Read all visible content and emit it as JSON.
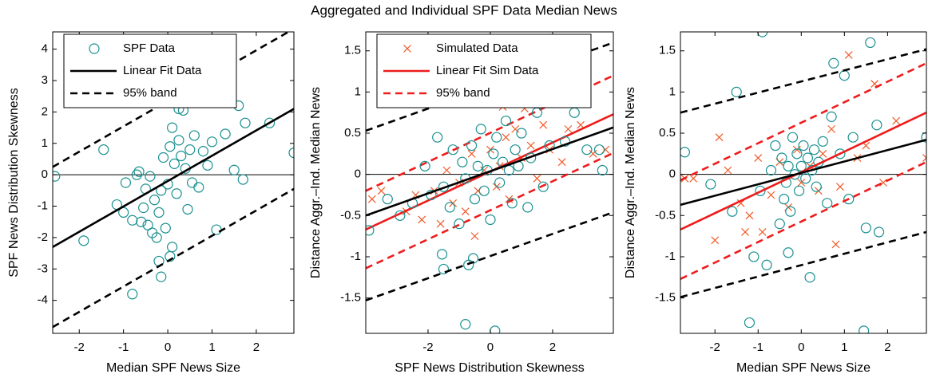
{
  "title": "Aggregated and Individual SPF Data Median News",
  "chart_data": [
    {
      "type": "scatter",
      "xlabel": "Median SPF News Size",
      "ylabel": "SPF News Distribution Skewness",
      "xlim": [
        -2.6,
        2.85
      ],
      "ylim": [
        -5.05,
        4.55
      ],
      "xticks": [
        -2,
        -1,
        0,
        1,
        2
      ],
      "yticks": [
        -4,
        -3,
        -2,
        -1,
        0,
        1,
        2,
        3,
        4
      ],
      "reference_line": 0,
      "legend": "upper left",
      "series": [
        {
          "name": "SPF Data",
          "kind": "scatter",
          "marker": "circle",
          "color": "#1a9090",
          "x": [
            -2.55,
            -1.45,
            -1.15,
            -1.9,
            -0.8,
            -1,
            -0.95,
            -0.8,
            -0.7,
            -0.6,
            -0.55,
            -0.5,
            -0.45,
            -0.4,
            -0.35,
            -0.3,
            -0.25,
            -0.2,
            -0.15,
            -0.1,
            -0.05,
            0,
            0.05,
            0.1,
            0.1,
            0.15,
            0.2,
            0.25,
            0.3,
            0.35,
            0.4,
            0.45,
            0.5,
            0.6,
            0.7,
            0.8,
            0.9,
            1,
            1.1,
            1.3,
            1.5,
            1.6,
            1.75,
            2.3,
            2.85,
            -0.15,
            -0.2,
            0.05,
            0.25,
            0.55,
            -0.65,
            1.7
          ],
          "values": [
            -0.05,
            0.8,
            -0.95,
            -2.1,
            -3.8,
            -1.2,
            -0.25,
            -1.45,
            0,
            -1.5,
            -1.05,
            -0.45,
            -1.6,
            -0.05,
            -1.85,
            -0.8,
            -2,
            -1.2,
            -0.5,
            0.55,
            -1.7,
            -0.3,
            0.9,
            -2.3,
            1.5,
            0.35,
            -0.6,
            1.1,
            0.6,
            2.05,
            0.2,
            -1.1,
            0.8,
            1.25,
            -0.4,
            0.75,
            0.3,
            1.05,
            -1.75,
            1.3,
            0.15,
            2.2,
            1.65,
            1.65,
            0.7,
            -3.25,
            -2.75,
            -2.6,
            2.1,
            -0.25,
            0.1,
            -0.15
          ]
        },
        {
          "name": "Linear Fit Data",
          "kind": "line",
          "color": "#000000",
          "x": [
            -2.6,
            2.85
          ],
          "values": [
            -2.3,
            2.1
          ]
        },
        {
          "name": "95% band",
          "kind": "band",
          "color": "#000000",
          "x": [
            -2.6,
            2.85
          ],
          "upper": [
            0.25,
            4.65
          ],
          "lower": [
            -4.85,
            -0.45
          ]
        }
      ]
    },
    {
      "type": "scatter",
      "xlabel": "SPF News Distribution Skewness",
      "ylabel": "Distance Aggr.–Ind. Median News",
      "xlim": [
        -4,
        3.95
      ],
      "ylim": [
        -1.93,
        1.73
      ],
      "xticks": [
        -2,
        0,
        2
      ],
      "yticks": [
        -1.5,
        -1,
        -0.5,
        0,
        0.5,
        1,
        1.5
      ],
      "reference_line": 0,
      "legend": "upper left",
      "series": [
        {
          "name": "Simulated Data",
          "kind": "scatter",
          "marker": "cross",
          "color": "#f05a28",
          "x": [
            -3.8,
            -3.5,
            -2.7,
            -2.4,
            -2.2,
            -1.8,
            -1.6,
            -1.4,
            -1.2,
            -1,
            -0.8,
            -0.6,
            -0.4,
            -0.2,
            0,
            0.2,
            0.3,
            0.5,
            0.6,
            0.8,
            1,
            1.1,
            1.3,
            1.5,
            1.7,
            1.9,
            2.1,
            2.3,
            2.5,
            2.9,
            3.3,
            3.7,
            0.4,
            -0.5
          ],
          "values": [
            -0.3,
            -0.2,
            -0.45,
            -0.25,
            -0.55,
            -0.2,
            -0.6,
            0.05,
            -0.35,
            -0.1,
            -0.45,
            0.25,
            -0.2,
            0.05,
            0.3,
            -0.15,
            0.1,
            0.45,
            -0.3,
            0.55,
            0.2,
            0.8,
            0.35,
            -0.05,
            0.6,
            0.3,
            0.95,
            0.15,
            0.55,
            0.6,
            0.25,
            0.3,
            0.82,
            -0.75
          ]
        },
        {
          "name": "Linear Fit Sim Data",
          "kind": "line",
          "color": "#ee1c1c",
          "x": [
            -4,
            3.95
          ],
          "values": [
            -0.67,
            0.73
          ]
        },
        {
          "name": "95% band",
          "kind": "band",
          "color": "#ee1c1c",
          "x": [
            -4,
            3.95
          ],
          "upper": [
            -0.2,
            1.2
          ],
          "lower": [
            -1.14,
            0.26
          ]
        },
        {
          "kind": "scatter",
          "marker": "circle",
          "color": "#1a9090",
          "x": [
            -3.9,
            -3.3,
            -2.9,
            -2.5,
            -2.1,
            -1.9,
            -1.7,
            -1.5,
            -1.3,
            -1.2,
            -1,
            -0.9,
            -0.8,
            -0.7,
            -0.6,
            -0.5,
            -0.4,
            -0.3,
            -0.2,
            -0.1,
            0,
            0.1,
            0.2,
            0.3,
            0.4,
            0.5,
            0.6,
            0.7,
            0.8,
            0.9,
            1,
            1.2,
            1.3,
            1.5,
            1.7,
            1.9,
            2.2,
            2.4,
            2.7,
            3.1,
            3.6,
            -0.8,
            0.15,
            -0.55,
            -1.5,
            -1.55,
            3.5
          ],
          "values": [
            -0.68,
            -0.3,
            -0.5,
            -0.35,
            0.1,
            -0.25,
            0.45,
            -0.15,
            -0.4,
            0.3,
            -0.6,
            0.15,
            -0.05,
            -1.1,
            0.35,
            -0.3,
            0.1,
            0.55,
            -0.2,
            0.05,
            -0.55,
            0.25,
            0.45,
            -0.1,
            0.15,
            0.65,
            0.05,
            -0.35,
            0.3,
            0.1,
            0.5,
            -0.4,
            0.2,
            0.75,
            -0.15,
            0.35,
            1.63,
            0.4,
            0.75,
            0.3,
            0.05,
            -1.82,
            -1.9,
            -1.02,
            -1.15,
            -0.97,
            0.3
          ]
        },
        {
          "kind": "line",
          "color": "#000000",
          "x": [
            -4,
            3.95
          ],
          "values": [
            -0.5,
            0.57
          ]
        },
        {
          "kind": "band",
          "color": "#000000",
          "x": [
            -4,
            3.95
          ],
          "upper": [
            0.53,
            1.6
          ],
          "lower": [
            -1.53,
            -0.46
          ]
        }
      ]
    },
    {
      "type": "scatter",
      "xlabel": "Median SPF News Size",
      "ylabel": "Distance Aggr.–Ind. Median News",
      "xlim": [
        -2.8,
        2.9
      ],
      "ylim": [
        -1.93,
        1.73
      ],
      "xticks": [
        -2,
        -1,
        0,
        1,
        2
      ],
      "yticks": [
        -1.5,
        -1,
        -0.5,
        0,
        0.5,
        1,
        1.5
      ],
      "reference_line": 0,
      "series": [
        {
          "kind": "scatter",
          "marker": "cross",
          "color": "#f05a28",
          "x": [
            -2.7,
            -2.5,
            -2,
            -1.9,
            -1.7,
            -1.4,
            -1.2,
            -1,
            -0.9,
            -0.7,
            -0.5,
            -0.3,
            -0.1,
            0,
            0.2,
            0.4,
            0.5,
            0.7,
            0.9,
            1.1,
            1.3,
            1.5,
            1.7,
            1.9,
            2.2,
            2.9,
            0.8,
            -1.3
          ],
          "values": [
            -0.05,
            -0.05,
            -0.8,
            0.45,
            0.05,
            -0.35,
            -0.5,
            0.2,
            -0.7,
            -0.25,
            0.15,
            -0.4,
            0.3,
            -0.1,
            0.1,
            -0.2,
            0.25,
            0.55,
            -0.15,
            1.45,
            0.2,
            0.35,
            1.1,
            -0.1,
            0.65,
            0.2,
            -0.85,
            -0.7
          ]
        },
        {
          "kind": "scatter",
          "marker": "circle",
          "color": "#1a9090",
          "x": [
            -2.7,
            -2.1,
            -1.6,
            -1.5,
            -1.2,
            -1.1,
            -0.95,
            -0.9,
            -0.8,
            -0.7,
            -0.6,
            -0.5,
            -0.45,
            -0.4,
            -0.35,
            -0.3,
            -0.25,
            -0.2,
            -0.15,
            -0.1,
            -0.05,
            0,
            0.05,
            0.1,
            0.15,
            0.2,
            0.25,
            0.3,
            0.35,
            0.4,
            0.5,
            0.6,
            0.7,
            0.75,
            0.9,
            1,
            1.1,
            1.2,
            1.45,
            1.5,
            1.6,
            1.75,
            1.8,
            2.9,
            -0.3
          ],
          "values": [
            0.27,
            -0.12,
            -0.45,
            1,
            -1.8,
            -1,
            -0.2,
            1.73,
            -1.1,
            0.05,
            0.35,
            -0.6,
            0.2,
            -0.3,
            -0.1,
            0.1,
            -0.45,
            0.45,
            0,
            0.25,
            -0.2,
            0.1,
            0.35,
            -0.05,
            0.2,
            -1.25,
            0.05,
            0.3,
            -0.15,
            0.15,
            0.4,
            -0.35,
            0.7,
            1.35,
            0.25,
            1.2,
            -0.3,
            0.45,
            -1.9,
            -0.65,
            1.6,
            0.6,
            -0.7,
            0.45,
            -0.95
          ]
        },
        {
          "kind": "line",
          "color": "#ee1c1c",
          "x": [
            -2.8,
            2.9
          ],
          "values": [
            -0.67,
            0.75
          ]
        },
        {
          "kind": "band",
          "color": "#ee1c1c",
          "x": [
            -2.8,
            2.9
          ],
          "upper": [
            -0.07,
            1.35
          ],
          "lower": [
            -1.27,
            0.15
          ]
        },
        {
          "kind": "line",
          "color": "#000000",
          "x": [
            -2.8,
            2.9
          ],
          "values": [
            -0.37,
            0.42
          ]
        },
        {
          "kind": "band",
          "color": "#000000",
          "x": [
            -2.8,
            2.9
          ],
          "upper": [
            0.75,
            1.52
          ],
          "lower": [
            -1.49,
            -0.7
          ]
        }
      ]
    }
  ]
}
